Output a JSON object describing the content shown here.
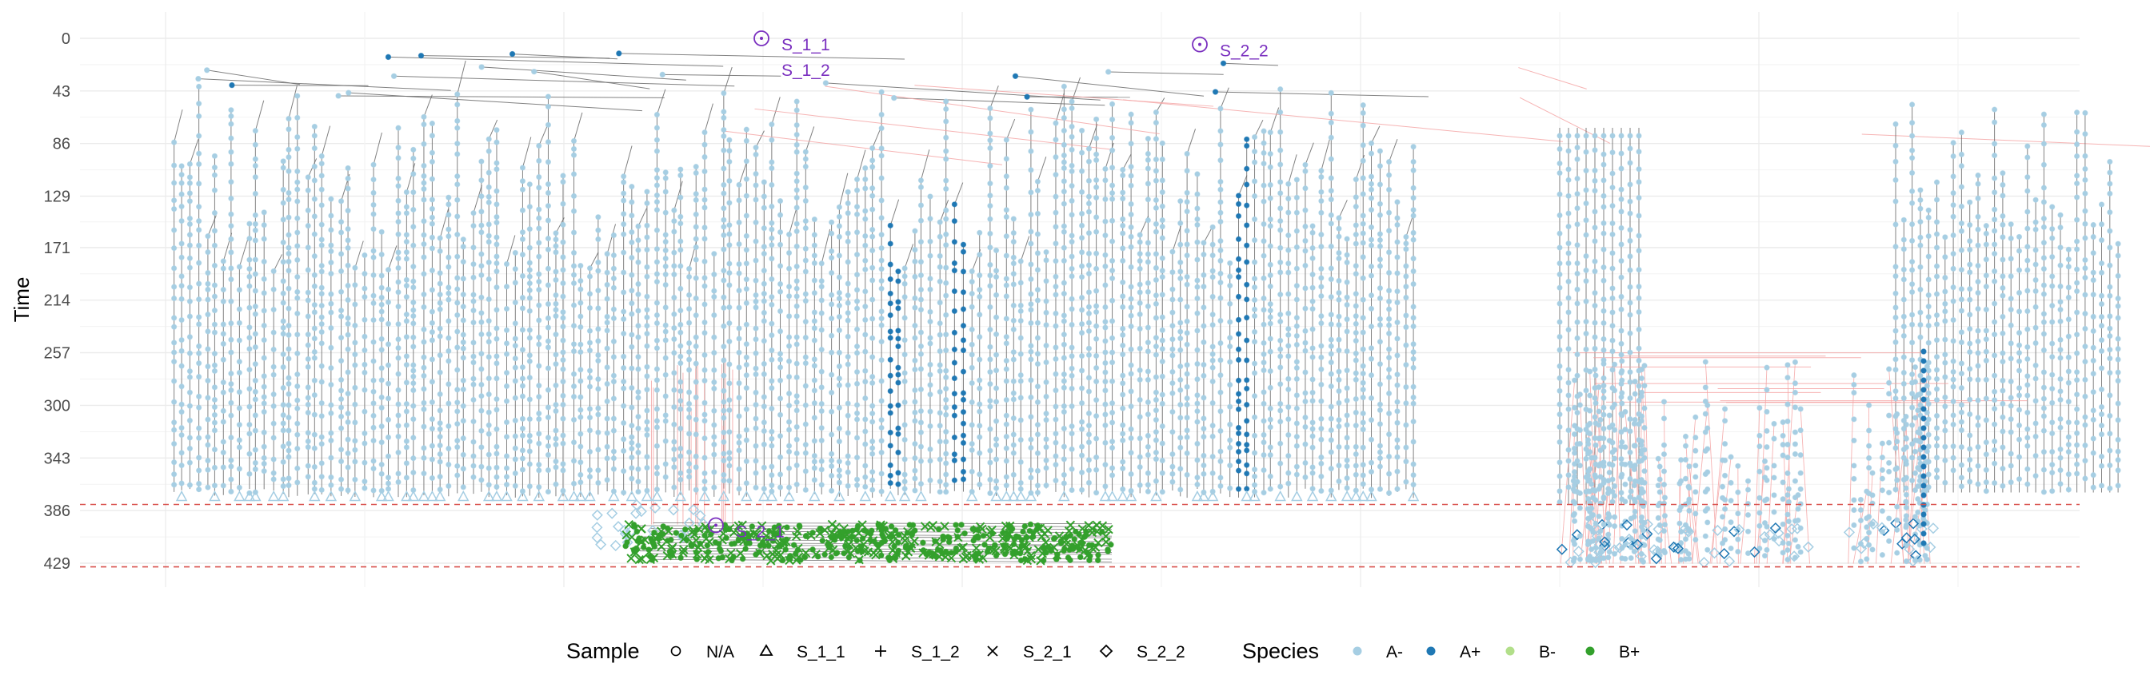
{
  "chart_data": {
    "type": "scatter",
    "title": "",
    "ylabel": "Time",
    "xlabel": "",
    "y_ticks": [
      0,
      43,
      86,
      129,
      171,
      214,
      257,
      300,
      343,
      386,
      429
    ],
    "ylim": [
      0,
      429
    ],
    "y_reversed": true,
    "grid": true,
    "sample_reference_times": [
      381,
      432
    ],
    "sample_annotations": [
      {
        "label": "S_1_1",
        "time": 0
      },
      {
        "label": "S_2_2",
        "time": 5
      },
      {
        "label": "S_1_2",
        "time": 21
      },
      {
        "label": "S_2_1",
        "time": 398
      }
    ],
    "legend": {
      "placement": "bottom",
      "sample": {
        "title": "Sample",
        "entries": [
          {
            "label": "N/A",
            "shape": "circle"
          },
          {
            "label": "S_1_1",
            "shape": "triangle"
          },
          {
            "label": "S_1_2",
            "shape": "plus"
          },
          {
            "label": "S_2_1",
            "shape": "cross"
          },
          {
            "label": "S_2_2",
            "shape": "diamond"
          }
        ]
      },
      "species": {
        "title": "Species",
        "entries": [
          {
            "label": "A-",
            "color": "#a6cee3"
          },
          {
            "label": "A+",
            "color": "#1f78b4"
          },
          {
            "label": "B-",
            "color": "#b2df8a"
          },
          {
            "label": "B+",
            "color": "#33a02c"
          }
        ]
      }
    },
    "colors": {
      "edge": "#6b6b6b",
      "migration_edge": "#f4a6a6",
      "reference_line": "#d9534f",
      "annotation": "#7a2fbf"
    }
  }
}
